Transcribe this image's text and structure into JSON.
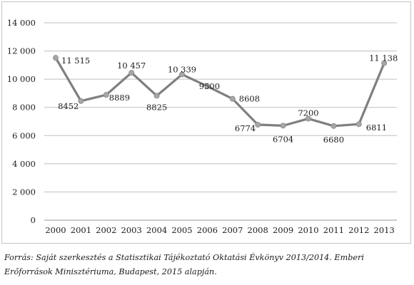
{
  "chart_data": {
    "type": "line",
    "x": [
      "2000",
      "2001",
      "2002",
      "2003",
      "2004",
      "2005",
      "2006",
      "2007",
      "2008",
      "2009",
      "2010",
      "2011",
      "2012",
      "2013"
    ],
    "values": [
      11515,
      8452,
      8889,
      10457,
      8825,
      10339,
      9500,
      8608,
      6774,
      6704,
      7200,
      6680,
      6811,
      11138
    ],
    "data_labels": [
      "11 515",
      "8452",
      "8889",
      "10 457",
      "8825",
      "10 339",
      "9500",
      "8608",
      "6774",
      "6704",
      "7200",
      "6680",
      "6811",
      "11 138"
    ],
    "y_ticks": [
      0,
      2000,
      4000,
      6000,
      8000,
      10000,
      12000,
      14000
    ],
    "y_tick_labels": [
      "0",
      "2 000",
      "4 000",
      "6 000",
      "8 000",
      "10 000",
      "12 000",
      "14 000"
    ],
    "ylim": [
      0,
      14000
    ],
    "grid": true,
    "line_color": "#7f7f7f",
    "grid_color": "#bfbfbf",
    "title": "",
    "xlabel": "",
    "ylabel": ""
  },
  "source_note": "Forrás: Saját szerkesztés a Statisztikai Tájékoztató Oktatási Évkönyv 2013/2014. Emberi Erőforrások Minisztériuma, Budapest, 2015 alapján."
}
